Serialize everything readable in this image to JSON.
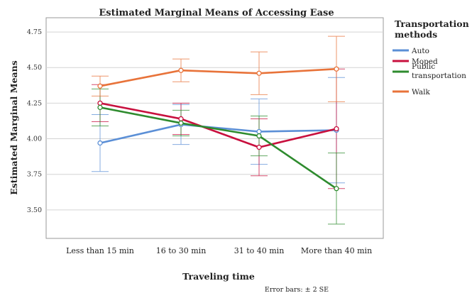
{
  "chart_data": {
    "type": "line",
    "title": "Estimated Marginal Means of Accessing Ease",
    "xlabel": "Traveling time",
    "ylabel": "Estimated Marginal Means",
    "categories": [
      "Less than 15 min",
      "16 to 30 min",
      "31 to 40 min",
      "More than 40 min"
    ],
    "ylim": [
      3.3,
      4.85
    ],
    "yticks": [
      "3.50",
      "3.75",
      "4.00",
      "4.25",
      "4.50",
      "4.75"
    ],
    "grid": true,
    "legend": {
      "title": "Transportation methods",
      "placement": "right",
      "entries": [
        "Auto",
        "Moped",
        "Public transportation",
        "Walk"
      ]
    },
    "series": [
      {
        "name": "Auto",
        "color": "#5b8fd6",
        "values": [
          3.97,
          4.1,
          4.05,
          4.06
        ],
        "error": [
          0.2,
          0.14,
          0.23,
          0.37
        ]
      },
      {
        "name": "Moped",
        "color": "#c8103e",
        "values": [
          4.25,
          4.14,
          3.94,
          4.07
        ],
        "error": [
          0.13,
          0.11,
          0.2,
          0.42
        ]
      },
      {
        "name": "Public transportation",
        "color": "#2e8b2e",
        "values": [
          4.22,
          4.11,
          4.02,
          3.65
        ],
        "error": [
          0.13,
          0.09,
          0.14,
          0.25
        ]
      },
      {
        "name": "Walk",
        "color": "#e8733a",
        "values": [
          4.37,
          4.48,
          4.46,
          4.49
        ],
        "error": [
          0.07,
          0.08,
          0.15,
          0.23
        ]
      }
    ],
    "footnote": "Error bars: ± 2 SE"
  }
}
